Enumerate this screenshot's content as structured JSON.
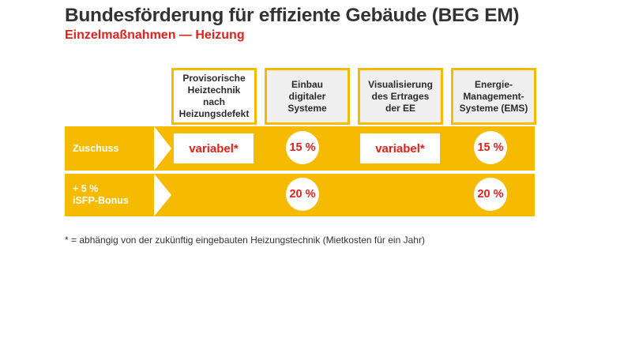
{
  "title": "Bundesförderung für effiziente Gebäude (BEG EM)",
  "subtitle": "Einzelmaßnahmen — Heizung",
  "columns": [
    "Provisorische\nHeiztechnik\nnach\nHeizungsdefekt",
    "Einbau\ndigitaler\nSysteme",
    "Visualisierung\ndes Ertrages\nder EE",
    "Energie-\nManagement-\nSysteme (EMS)"
  ],
  "rows": [
    {
      "label": "Zuschuss",
      "values": [
        "variabel*",
        "15 %",
        "variabel*",
        "15 %"
      ]
    },
    {
      "label": "+ 5 %\niSFP-Bonus",
      "values": [
        "",
        "20 %",
        "",
        "20 %"
      ]
    }
  ],
  "footnote": "* = abhängig von der zukünftig eingebauten Heizungstechnik (Mietkosten für ein Jahr)",
  "colors": {
    "yellow": "#f6bb00",
    "red": "#e2211c",
    "text": "#333333",
    "gray_fill": "#efefef"
  }
}
